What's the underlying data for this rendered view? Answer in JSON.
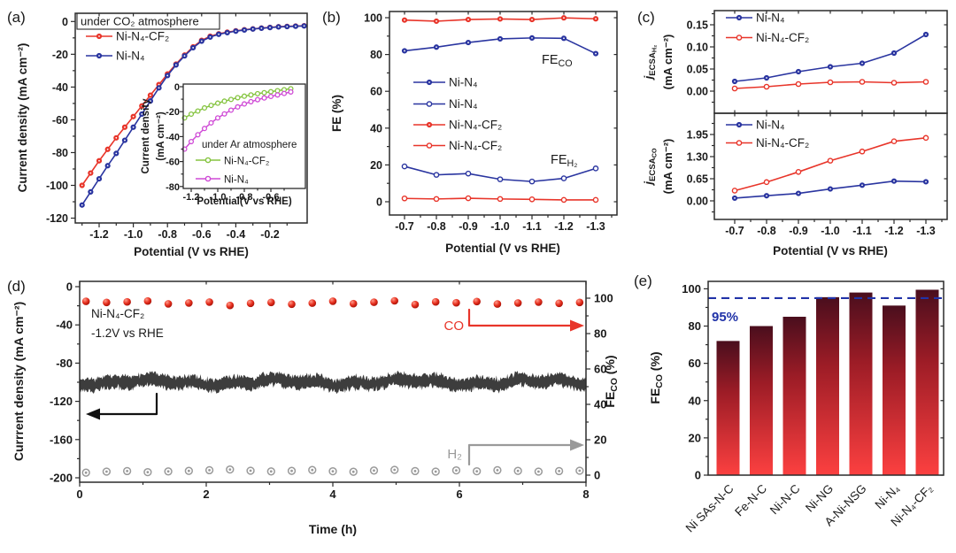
{
  "figure": {
    "background": "#ffffff",
    "panel_labels": {
      "a": "(a)",
      "b": "(b)",
      "c": "(c)",
      "d": "(d)",
      "e": "(e)"
    }
  },
  "colors": {
    "red": "#e8352a",
    "blue": "#2a35a0",
    "green": "#85c440",
    "magenta": "#cf4ad6",
    "text": "#1a1a1a",
    "frame": "#2b2b2b",
    "gray": "#9a9a9a",
    "trace": "#3d3d3d",
    "bar_top": "#4a0e1d",
    "bar_mid": "#9c1c26",
    "bar_bottom": "#fc4040",
    "refline": "#2133a8",
    "sphere_hi": "#ff9a8a",
    "sphere_mid": "#e62f1e",
    "sphere_lo": "#a31107"
  },
  "chart_data": [
    {
      "id": "a",
      "type": "line",
      "title": "under CO₂ atmosphere",
      "xlabel": "Potential (V vs RHE)",
      "ylabel": "Current density (mA cm⁻²)",
      "xlim": [
        -1.34,
        0.02
      ],
      "ylim": [
        -123,
        5.5
      ],
      "xticks": {
        "values": [
          -1.2,
          -1.0,
          -0.8,
          -0.6,
          -0.4,
          -0.2
        ],
        "labels": [
          "-1.2",
          "-1.0",
          "-0.8",
          "-0.6",
          "-0.4",
          "-0.2"
        ]
      },
      "yticks": {
        "values": [
          0,
          -20,
          -40,
          -60,
          -80,
          -100,
          -120
        ],
        "labels": [
          "0",
          "-20",
          "-40",
          "-60",
          "-80",
          "-100",
          "-120"
        ]
      },
      "x": [
        -1.3,
        -1.25,
        -1.2,
        -1.15,
        -1.1,
        -1.05,
        -1.0,
        -0.95,
        -0.9,
        -0.85,
        -0.8,
        -0.75,
        -0.7,
        -0.65,
        -0.6,
        -0.55,
        -0.5,
        -0.45,
        -0.4,
        -0.35,
        -0.3,
        -0.25,
        -0.2,
        -0.15,
        -0.1,
        -0.05,
        0.0
      ],
      "series": [
        {
          "name": "Ni-N₄-CF₂",
          "color": "red",
          "marker": "filled",
          "y": [
            -100,
            -92.5,
            -85,
            -78,
            -71,
            -64.5,
            -58,
            -51.5,
            -45,
            -38.5,
            -32,
            -26,
            -20.5,
            -15.5,
            -11.5,
            -9,
            -7.5,
            -6.5,
            -5.7,
            -5,
            -4.5,
            -4,
            -3.6,
            -3.2,
            -3,
            -2.8,
            -2.6
          ]
        },
        {
          "name": "Ni-N₄",
          "color": "blue",
          "marker": "filled",
          "y": [
            -112,
            -104,
            -96,
            -88,
            -80.5,
            -72.5,
            -64.5,
            -56.5,
            -48.5,
            -40.5,
            -33,
            -26.5,
            -21,
            -16,
            -12,
            -9.5,
            -7.8,
            -6.8,
            -5.9,
            -5.2,
            -4.6,
            -4.1,
            -3.7,
            -3.3,
            -3.1,
            -2.9,
            -2.7
          ]
        }
      ]
    },
    {
      "id": "a_inset",
      "type": "line",
      "title": "under Ar atmosphere",
      "xlabel": "Potential(V vs RHE)",
      "ylabel_lines": [
        "Current density",
        "(mA cm⁻²)"
      ],
      "xlim": [
        -1.26,
        -0.34
      ],
      "ylim": [
        -84,
        2
      ],
      "xticks": {
        "values": [
          -1.2,
          -1.0,
          -0.8,
          -0.6
        ],
        "labels": [
          "-1.2",
          "-1.0",
          "-0.8",
          "-0.6"
        ]
      },
      "yticks": {
        "values": [
          0,
          -20,
          -40,
          -60,
          -80
        ],
        "labels": [
          "0",
          "-20",
          "-40",
          "-60",
          "-80"
        ]
      },
      "x": [
        -1.25,
        -1.2,
        -1.15,
        -1.1,
        -1.05,
        -1.0,
        -0.95,
        -0.9,
        -0.85,
        -0.8,
        -0.75,
        -0.7,
        -0.65,
        -0.6,
        -0.55,
        -0.5,
        -0.45
      ],
      "series": [
        {
          "name": "Ni-N₄-CF₂",
          "color": "green",
          "marker": "open",
          "y": [
            -25,
            -22,
            -19.5,
            -17,
            -15,
            -13.2,
            -11.6,
            -10.2,
            -8.8,
            -7.6,
            -6.6,
            -5.6,
            -4.8,
            -4.0,
            -3.2,
            -2.4,
            -1.6
          ]
        },
        {
          "name": "Ni-N₄",
          "color": "magenta",
          "marker": "open",
          "y": [
            -50,
            -44,
            -38.5,
            -33.5,
            -29,
            -25,
            -21.8,
            -18.8,
            -16.2,
            -13.8,
            -12,
            -10.4,
            -9,
            -7.8,
            -6.6,
            -5.4,
            -4.2
          ]
        }
      ]
    },
    {
      "id": "b",
      "type": "line",
      "xlabel": "Potential (V vs RHE)",
      "ylabel": "FE (%)",
      "xlim": [
        -0.65,
        -1.37
      ],
      "ylim": [
        -7,
        103
      ],
      "xticks": {
        "values": [
          -0.7,
          -0.8,
          -0.9,
          -1.0,
          -1.1,
          -1.2,
          -1.3
        ],
        "labels": [
          "-0.7",
          "-0.8",
          "-0.9",
          "-1.0",
          "-1.1",
          "-1.2",
          "-1.3"
        ]
      },
      "yticks": {
        "values": [
          0,
          20,
          40,
          60,
          80,
          100
        ],
        "labels": [
          "0",
          "20",
          "40",
          "60",
          "80",
          "100"
        ]
      },
      "x": [
        -0.7,
        -0.8,
        -0.9,
        -1.0,
        -1.1,
        -1.2,
        -1.3
      ],
      "series": [
        {
          "name": "Ni-N₄",
          "color": "blue",
          "marker": "filled",
          "group": "FE_CO",
          "y": [
            82,
            84,
            86.5,
            88.5,
            89,
            88.8,
            80.5
          ]
        },
        {
          "name": "Ni-N₄",
          "color": "blue",
          "marker": "open",
          "group": "FE_H2",
          "y": [
            19.2,
            14.6,
            15.3,
            12.2,
            11,
            12.7,
            18.1
          ]
        },
        {
          "name": "Ni-N₄-CF₂",
          "color": "red",
          "marker": "filled",
          "group": "FE_CO",
          "y": [
            98.7,
            98.1,
            99,
            99.3,
            99,
            99.9,
            99.4
          ]
        },
        {
          "name": "Ni-N₄-CF₂",
          "color": "red",
          "marker": "open",
          "group": "FE_H2",
          "y": [
            1.8,
            1.5,
            1.9,
            1.5,
            1.3,
            1.0,
            1.0
          ]
        }
      ],
      "annotations": [
        {
          "id": "feco",
          "rich": [
            [
              "FE",
              "n"
            ],
            [
              "CO",
              "sub"
            ]
          ]
        },
        {
          "id": "feh2",
          "rich": [
            [
              "FE",
              "n"
            ],
            [
              "H₂",
              "sub"
            ]
          ]
        }
      ]
    },
    {
      "id": "c_top",
      "type": "line",
      "ylabel_rich": [
        [
          "j",
          "it"
        ],
        [
          "ECSA",
          "sub"
        ],
        [
          "H₂",
          "subsub"
        ]
      ],
      "ylabel2": "(mA cm⁻²)",
      "ylim": [
        -0.05,
        0.182
      ],
      "yticks": {
        "values": [
          0.0,
          0.05,
          0.1,
          0.15
        ],
        "labels": [
          "0.00",
          "0.05",
          "0.10",
          "0.15"
        ]
      },
      "x": [
        -0.7,
        -0.8,
        -0.9,
        -1.0,
        -1.1,
        -1.2,
        -1.3
      ],
      "series": [
        {
          "name": "Ni-N₄",
          "color": "blue",
          "marker": "filled",
          "y": [
            0.022,
            0.03,
            0.044,
            0.055,
            0.063,
            0.086,
            0.128
          ]
        },
        {
          "name": "Ni-N₄-CF₂",
          "color": "red",
          "marker": "open",
          "y": [
            0.006,
            0.01,
            0.016,
            0.02,
            0.021,
            0.019,
            0.021
          ]
        }
      ]
    },
    {
      "id": "c_bottom",
      "type": "line",
      "xlabel": "Potential (V vs RHE)",
      "ylabel_rich": [
        [
          "j",
          "it"
        ],
        [
          "ECSA",
          "sub"
        ],
        [
          "CO",
          "subsub"
        ]
      ],
      "ylabel2": "(mA cm⁻²)",
      "xlim": [
        -0.65,
        -1.37
      ],
      "ylim": [
        -0.546,
        2.574
      ],
      "xticks": {
        "values": [
          -0.7,
          -0.8,
          -0.9,
          -1.0,
          -1.1,
          -1.2,
          -1.3
        ],
        "labels": [
          "-0.7",
          "-0.8",
          "-0.9",
          "-1.0",
          "-1.1",
          "-1.2",
          "-1.3"
        ]
      },
      "yticks": {
        "values": [
          0.0,
          0.65,
          1.3,
          1.95
        ],
        "labels": [
          "0.00",
          "0.65",
          "1.30",
          "1.95"
        ]
      },
      "x": [
        -0.7,
        -0.8,
        -0.9,
        -1.0,
        -1.1,
        -1.2,
        -1.3
      ],
      "series": [
        {
          "name": "Ni-N₄",
          "color": "blue",
          "marker": "filled",
          "y": [
            0.08,
            0.15,
            0.22,
            0.35,
            0.46,
            0.58,
            0.56
          ]
        },
        {
          "name": "Ni-N₄-CF₂",
          "color": "red",
          "marker": "open",
          "y": [
            0.3,
            0.55,
            0.85,
            1.18,
            1.45,
            1.75,
            1.85
          ]
        }
      ]
    },
    {
      "id": "d",
      "type": "line",
      "xlabel": "Time (h)",
      "xlim": [
        0,
        8
      ],
      "xticks": {
        "values": [
          0,
          2,
          4,
          6,
          8
        ],
        "labels": [
          "0",
          "2",
          "4",
          "6",
          "8"
        ]
      },
      "left_axis": {
        "label": "Currrent density (mA cm⁻²)",
        "ylim": [
          -204.6,
          5.5
        ],
        "yticks": {
          "values": [
            0,
            -40,
            -80,
            -120,
            -160,
            -200
          ],
          "labels": [
            "0",
            "-40",
            "-80",
            "-120",
            "-160",
            "-200"
          ]
        }
      },
      "right_axis": {
        "label_rich": [
          [
            "FE",
            "n"
          ],
          [
            "CO",
            "sub"
          ],
          [
            " (%)",
            "n"
          ]
        ],
        "ylim": [
          -4,
          109.5
        ],
        "yticks": {
          "values": [
            0,
            20,
            40,
            60,
            80,
            100
          ],
          "labels": [
            "0",
            "20",
            "40",
            "60",
            "80",
            "100"
          ]
        }
      },
      "annotations": {
        "catalyst": "Ni-N₄-CF₂",
        "potential": "-1.2V vs RHE",
        "co_label": "CO",
        "h2_label": "H₂"
      },
      "co_fe": {
        "t": [
          0.1,
          0.425,
          0.75,
          1.075,
          1.4,
          1.725,
          2.05,
          2.375,
          2.7,
          3.025,
          3.35,
          3.675,
          4.0,
          4.325,
          4.65,
          4.975,
          5.3,
          5.625,
          5.95,
          6.275,
          6.6,
          6.925,
          7.25,
          7.575,
          7.9
        ],
        "y": [
          98.2,
          97.6,
          97.9,
          98.4,
          96.8,
          97.3,
          97.8,
          95.9,
          97.1,
          97.6,
          96.6,
          97.2,
          98.3,
          96.9,
          97.7,
          98.5,
          96.4,
          97.9,
          97.4,
          98.1,
          96.7,
          97.3,
          97.8,
          97.1,
          97.6
        ]
      },
      "h2_fe": {
        "t": [
          0.1,
          0.425,
          0.75,
          1.075,
          1.4,
          1.725,
          2.05,
          2.375,
          2.7,
          3.025,
          3.35,
          3.675,
          4.0,
          4.325,
          4.65,
          4.975,
          5.3,
          5.625,
          5.95,
          6.275,
          6.6,
          6.925,
          7.25,
          7.575,
          7.9
        ],
        "y": [
          1.4,
          2.0,
          2.3,
          1.7,
          2.1,
          2.4,
          2.8,
          3.2,
          2.5,
          2.1,
          2.4,
          2.9,
          2.2,
          1.9,
          2.6,
          3.0,
          2.3,
          2.0,
          2.7,
          2.2,
          2.8,
          2.4,
          2.0,
          2.3,
          2.5
        ]
      },
      "current_trace": {
        "mean": -100,
        "band_halfwidth": 6.5,
        "wobble": 3
      }
    },
    {
      "id": "e",
      "type": "bar",
      "ylabel_rich": [
        [
          "FE",
          "n"
        ],
        [
          "CO",
          "sub"
        ],
        [
          " (%)",
          "n"
        ]
      ],
      "ylim": [
        0,
        104
      ],
      "yticks": {
        "values": [
          0,
          20,
          40,
          60,
          80,
          100
        ],
        "labels": [
          "0",
          "20",
          "40",
          "60",
          "80",
          "100"
        ]
      },
      "categories": [
        "Ni SAs-N-C",
        "Fe-N-C",
        "Ni-N-C",
        "Ni-NG",
        "A-Ni-NSG",
        "Ni-N₄",
        "Ni-N₄-CF₂"
      ],
      "values": [
        72,
        80,
        85,
        95.5,
        98,
        91,
        99.5
      ],
      "refline": {
        "value": 95,
        "label": "95%"
      }
    }
  ]
}
